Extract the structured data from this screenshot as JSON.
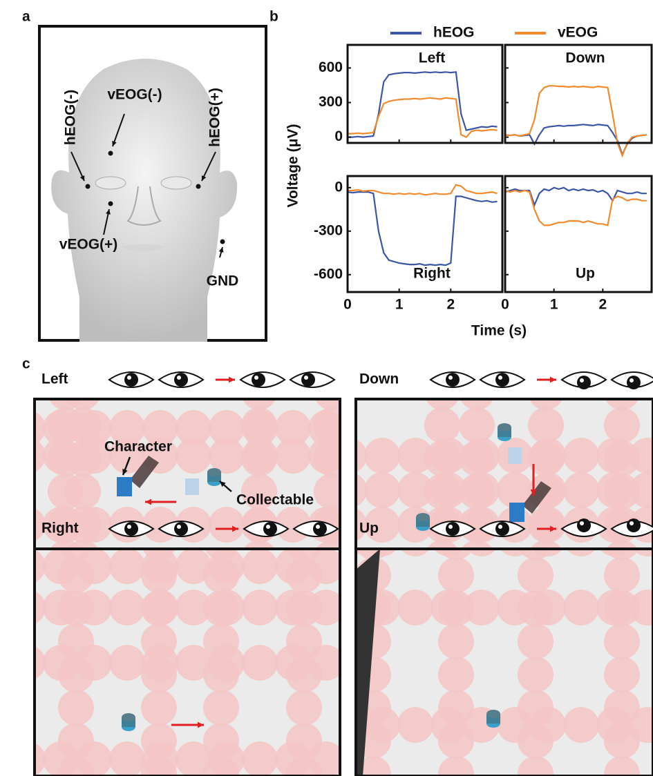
{
  "panel_labels": [
    "a",
    "b",
    "c"
  ],
  "face": {
    "labels": [
      "vEOG(-)",
      "hEOG(-)",
      "hEOG(+)",
      "vEOG(+)",
      "GND"
    ]
  },
  "axes": {
    "ylabel": "Voltage (μV)",
    "xlabel": "Time (s)"
  },
  "chart_data": [
    {
      "type": "line",
      "title": "Left",
      "xlim": [
        0,
        3
      ],
      "xticks": [
        0,
        1,
        2
      ],
      "ylim": [
        -50,
        800
      ],
      "yticks": [
        0,
        300,
        600
      ],
      "x": [
        0,
        0.1,
        0.2,
        0.3,
        0.4,
        0.5,
        0.6,
        0.7,
        0.8,
        0.9,
        1,
        1.1,
        1.2,
        1.3,
        1.4,
        1.5,
        1.6,
        1.7,
        1.8,
        1.9,
        2,
        2.1,
        2.2,
        2.3,
        2.4,
        2.5,
        2.6,
        2.7,
        2.8,
        2.9
      ],
      "series": [
        {
          "name": "hEOG",
          "color": "#3a56a5",
          "values": [
            0,
            0,
            5,
            0,
            5,
            10,
            200,
            480,
            540,
            550,
            555,
            560,
            560,
            555,
            560,
            565,
            560,
            565,
            560,
            565,
            560,
            565,
            200,
            60,
            70,
            80,
            90,
            85,
            95,
            90
          ]
        },
        {
          "name": "vEOG",
          "color": "#f28a2c",
          "values": [
            30,
            30,
            35,
            30,
            35,
            40,
            180,
            290,
            310,
            320,
            325,
            330,
            330,
            335,
            330,
            335,
            340,
            335,
            330,
            340,
            335,
            330,
            20,
            0,
            50,
            60,
            55,
            60,
            65,
            60
          ]
        }
      ]
    },
    {
      "type": "line",
      "title": "Down",
      "xlim": [
        0,
        3
      ],
      "xticks": [
        0,
        1,
        2
      ],
      "ylim": [
        -50,
        800
      ],
      "yticks": [
        0,
        300,
        600
      ],
      "x": [
        0,
        0.1,
        0.2,
        0.3,
        0.4,
        0.5,
        0.6,
        0.7,
        0.8,
        0.9,
        1,
        1.1,
        1.2,
        1.3,
        1.4,
        1.5,
        1.6,
        1.7,
        1.8,
        1.9,
        2,
        2.1,
        2.2,
        2.3,
        2.4,
        2.5,
        2.6,
        2.7,
        2.8,
        2.9
      ],
      "series": [
        {
          "name": "hEOG",
          "color": "#3a56a5",
          "values": [
            20,
            15,
            20,
            10,
            15,
            20,
            -60,
            20,
            80,
            90,
            95,
            100,
            95,
            100,
            100,
            105,
            110,
            105,
            100,
            110,
            105,
            100,
            40,
            -30,
            -150,
            -60,
            -10,
            10,
            15,
            20
          ]
        },
        {
          "name": "vEOG",
          "color": "#f28a2c",
          "values": [
            20,
            15,
            20,
            10,
            20,
            30,
            150,
            380,
            430,
            445,
            445,
            440,
            440,
            435,
            440,
            435,
            440,
            435,
            430,
            440,
            435,
            430,
            200,
            -50,
            -160,
            -50,
            0,
            10,
            15,
            20
          ]
        }
      ]
    },
    {
      "type": "line",
      "title": "Right",
      "xlim": [
        0,
        3
      ],
      "xticks": [
        0,
        1,
        2
      ],
      "ylim": [
        -720,
        80
      ],
      "yticks": [
        0,
        -300,
        -600
      ],
      "x": [
        0,
        0.1,
        0.2,
        0.3,
        0.4,
        0.5,
        0.6,
        0.7,
        0.8,
        0.9,
        1,
        1.1,
        1.2,
        1.3,
        1.4,
        1.5,
        1.6,
        1.7,
        1.8,
        1.9,
        2,
        2.1,
        2.2,
        2.3,
        2.4,
        2.5,
        2.6,
        2.7,
        2.8,
        2.9
      ],
      "series": [
        {
          "name": "hEOG",
          "color": "#3a56a5",
          "values": [
            -30,
            -35,
            -30,
            -30,
            -30,
            -40,
            -300,
            -450,
            -500,
            -510,
            -520,
            -525,
            -530,
            -530,
            -525,
            -535,
            -530,
            -535,
            -530,
            -535,
            -520,
            -60,
            -60,
            -70,
            -80,
            -90,
            -95,
            -90,
            -100,
            -95
          ]
        },
        {
          "name": "vEOG",
          "color": "#f28a2c",
          "values": [
            -20,
            -20,
            -15,
            -25,
            -20,
            -20,
            -30,
            -40,
            -40,
            -45,
            -40,
            -45,
            -40,
            -45,
            -40,
            -50,
            -45,
            -40,
            -45,
            -45,
            -40,
            20,
            10,
            -20,
            -30,
            -40,
            -40,
            -35,
            -30,
            -40
          ]
        }
      ]
    },
    {
      "type": "line",
      "title": "Up",
      "xlim": [
        0,
        3
      ],
      "xticks": [
        0,
        1,
        2
      ],
      "ylim": [
        -720,
        80
      ],
      "yticks": [
        0,
        -300,
        -600
      ],
      "x": [
        0,
        0.1,
        0.2,
        0.3,
        0.4,
        0.5,
        0.6,
        0.7,
        0.8,
        0.9,
        1,
        1.1,
        1.2,
        1.3,
        1.4,
        1.5,
        1.6,
        1.7,
        1.8,
        1.9,
        2,
        2.1,
        2.2,
        2.3,
        2.4,
        2.5,
        2.6,
        2.7,
        2.8,
        2.9
      ],
      "series": [
        {
          "name": "hEOG",
          "color": "#3a56a5",
          "values": [
            -30,
            -20,
            -10,
            -20,
            -20,
            -20,
            -120,
            -40,
            -10,
            -20,
            0,
            -10,
            0,
            -20,
            -10,
            -20,
            -10,
            -20,
            -15,
            -30,
            -20,
            -40,
            -90,
            -20,
            -30,
            -40,
            -40,
            -30,
            -40,
            -40
          ]
        },
        {
          "name": "vEOG",
          "color": "#f28a2c",
          "values": [
            -20,
            -30,
            -20,
            -30,
            -20,
            -30,
            -150,
            -230,
            -260,
            -260,
            -250,
            -240,
            -240,
            -230,
            -230,
            -230,
            -240,
            -230,
            -240,
            -250,
            -250,
            -260,
            -80,
            -60,
            -70,
            -90,
            -80,
            -80,
            -90,
            -90
          ]
        }
      ]
    }
  ],
  "game_panels": [
    {
      "title": "Left"
    },
    {
      "title": "Down"
    },
    {
      "title": "Right"
    },
    {
      "title": "Up"
    }
  ],
  "annotations": [
    "Character",
    "Collectable"
  ]
}
